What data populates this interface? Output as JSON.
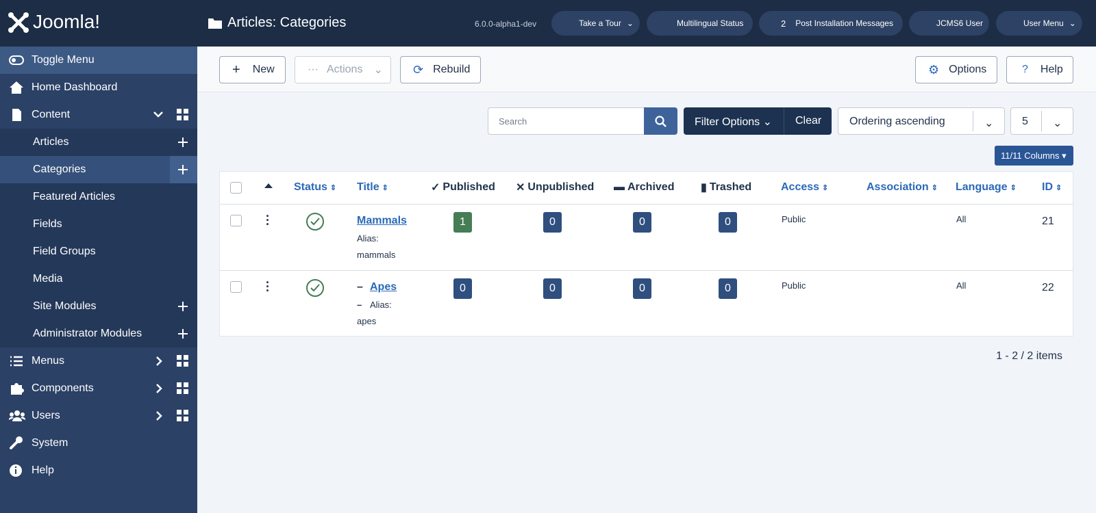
{
  "header": {
    "logo": "Joomla!",
    "title": "Articles: Categories",
    "version": "6.0.0-alpha1-dev",
    "tour": "Take a Tour",
    "multilingual": "Multilingual Status",
    "notifications_count": 2,
    "post_installation": "Post Installation Messages",
    "site": "JCMS6 User",
    "user_menu": "User Menu"
  },
  "sidebar": {
    "items": [
      "Toggle Menu",
      "Home Dashboard",
      "Content",
      "Articles",
      "Categories",
      "Featured Articles",
      "Fields",
      "Field Groups",
      "Media",
      "Site Modules",
      "Administrator Modules",
      "Menus",
      "Components",
      "Users",
      "System",
      "Help"
    ]
  },
  "toolbar": {
    "new": "New",
    "actions": "Actions",
    "rebuild": "Rebuild",
    "options": "Options",
    "help": "Help"
  },
  "filters": {
    "search_placeholder": "Search",
    "filter_options": "Filter Options",
    "clear": "Clear",
    "ordering": "Ordering ascending",
    "limit": 5,
    "columns": "11/11 Columns"
  },
  "table": {
    "columns": [
      "Status",
      "Title",
      "Published",
      "Unpublished",
      "Archived",
      "Trashed",
      "Access",
      "Association",
      "Language",
      "ID"
    ],
    "alias_label": "Alias:",
    "rows": [
      {
        "title": "Mammals",
        "alias": "mammals",
        "published": 1,
        "unpublished": 0,
        "archived": 0,
        "trashed": 0,
        "access": "Public",
        "language": "All",
        "id": 21
      },
      {
        "level_mark": "–",
        "title": "Apes",
        "alias": "apes",
        "published": 0,
        "unpublished": 0,
        "archived": 0,
        "trashed": 0,
        "access": "Public",
        "language": "All",
        "id": 22
      }
    ]
  },
  "pagination": {
    "summary": "1 - 2 / 2 items"
  }
}
